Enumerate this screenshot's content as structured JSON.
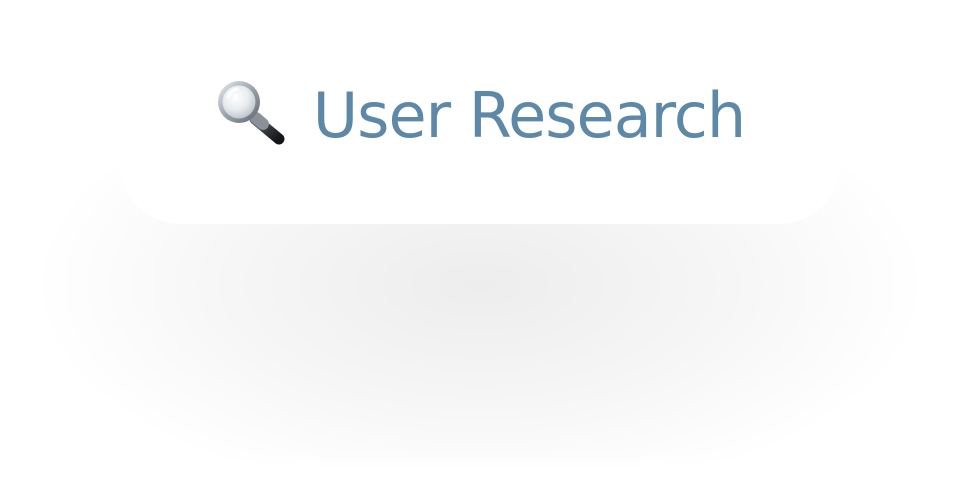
{
  "header": {
    "icon": "magnifying-glass-icon",
    "title": "User Research"
  },
  "colors": {
    "title": "#5e88a8",
    "background": "#ffffff"
  }
}
